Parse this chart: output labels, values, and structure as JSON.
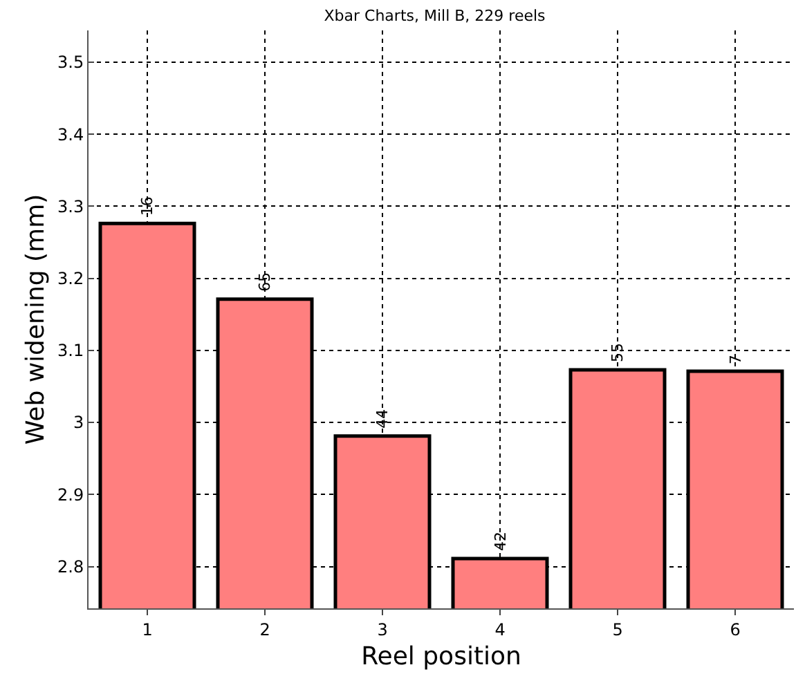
{
  "chart_data": {
    "type": "bar",
    "title": "Xbar Charts, Mill B, 229 reels",
    "xlabel": "Reel position",
    "ylabel": "Web widening (mm)",
    "categories": [
      "1",
      "2",
      "3",
      "4",
      "5",
      "6"
    ],
    "values": [
      3.276,
      3.171,
      2.981,
      2.811,
      3.073,
      3.071
    ],
    "color": "#ff7f7f",
    "ylim": [
      2.742,
      3.544
    ],
    "yticks": [
      2.8,
      2.9,
      {
        "value": 3.0,
        "label": "3"
      },
      3.1,
      3.2,
      3.3,
      3.4,
      3.5
    ],
    "grid": true,
    "annotations": [
      {
        "text": "16",
        "x": "1",
        "y": 3.276
      },
      {
        "text": "65",
        "x": "2",
        "y": 3.171
      },
      {
        "text": "44",
        "x": "3",
        "y": 2.981
      },
      {
        "text": "42",
        "x": "4",
        "y": 2.811
      },
      {
        "text": "55",
        "x": "5",
        "y": 3.073
      },
      {
        "text": "7",
        "x": "6",
        "y": 3.071
      }
    ]
  }
}
